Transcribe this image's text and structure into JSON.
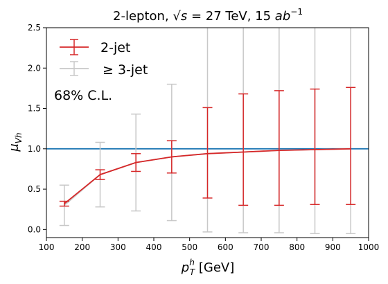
{
  "chart_data": {
    "type": "line",
    "title_parts": {
      "lead": "2-lepton, ",
      "sqrt_s": "√s",
      "eq": " = 27 TeV, 15 ",
      "ab": "ab",
      "ab_exp": "−1"
    },
    "xlabel": {
      "main": "p",
      "sup": "h",
      "sub": "T",
      "unit": " [GeV]"
    },
    "ylabel": {
      "main": "μ",
      "sub": "Vh"
    },
    "xlim": [
      100,
      1000
    ],
    "ylim": [
      -0.1,
      2.5
    ],
    "xticks": [
      100,
      200,
      300,
      400,
      500,
      600,
      700,
      800,
      900,
      1000
    ],
    "yticks": [
      0.0,
      0.5,
      1.0,
      1.5,
      2.0,
      2.5
    ],
    "xtick_labels": [
      "100",
      "200",
      "300",
      "400",
      "500",
      "600",
      "700",
      "800",
      "900",
      "1000"
    ],
    "ytick_labels": [
      "0.0",
      "0.5",
      "1.0",
      "1.5",
      "2.0",
      "2.5"
    ],
    "annotation": "68% C.L.",
    "reference_line": {
      "y": 1.0,
      "color": "#1f77b4"
    },
    "legend_placement": "top-left",
    "series": [
      {
        "name": "≥ 3-jet",
        "color": "#c8c8c8",
        "x": [
          150,
          250,
          350,
          450,
          550,
          650,
          750,
          850,
          950
        ],
        "y": [
          0.3,
          0.68,
          0.83,
          0.9,
          0.94,
          0.96,
          0.98,
          0.99,
          1.0
        ],
        "err_low": [
          0.05,
          0.28,
          0.23,
          0.11,
          -0.03,
          -0.04,
          -0.04,
          -0.05,
          -0.05
        ],
        "err_high": [
          0.55,
          1.08,
          1.43,
          1.8,
          2.6,
          2.6,
          2.6,
          2.6,
          2.6
        ]
      },
      {
        "name": "2-jet",
        "color": "#d62728",
        "x": [
          150,
          250,
          350,
          450,
          550,
          650,
          750,
          850,
          950
        ],
        "y": [
          0.32,
          0.68,
          0.83,
          0.9,
          0.94,
          0.96,
          0.98,
          0.99,
          1.0
        ],
        "err_low": [
          0.29,
          0.62,
          0.72,
          0.7,
          0.39,
          0.3,
          0.3,
          0.31,
          0.31
        ],
        "err_high": [
          0.35,
          0.74,
          0.94,
          1.1,
          1.51,
          1.68,
          1.72,
          1.74,
          1.76
        ]
      }
    ]
  }
}
